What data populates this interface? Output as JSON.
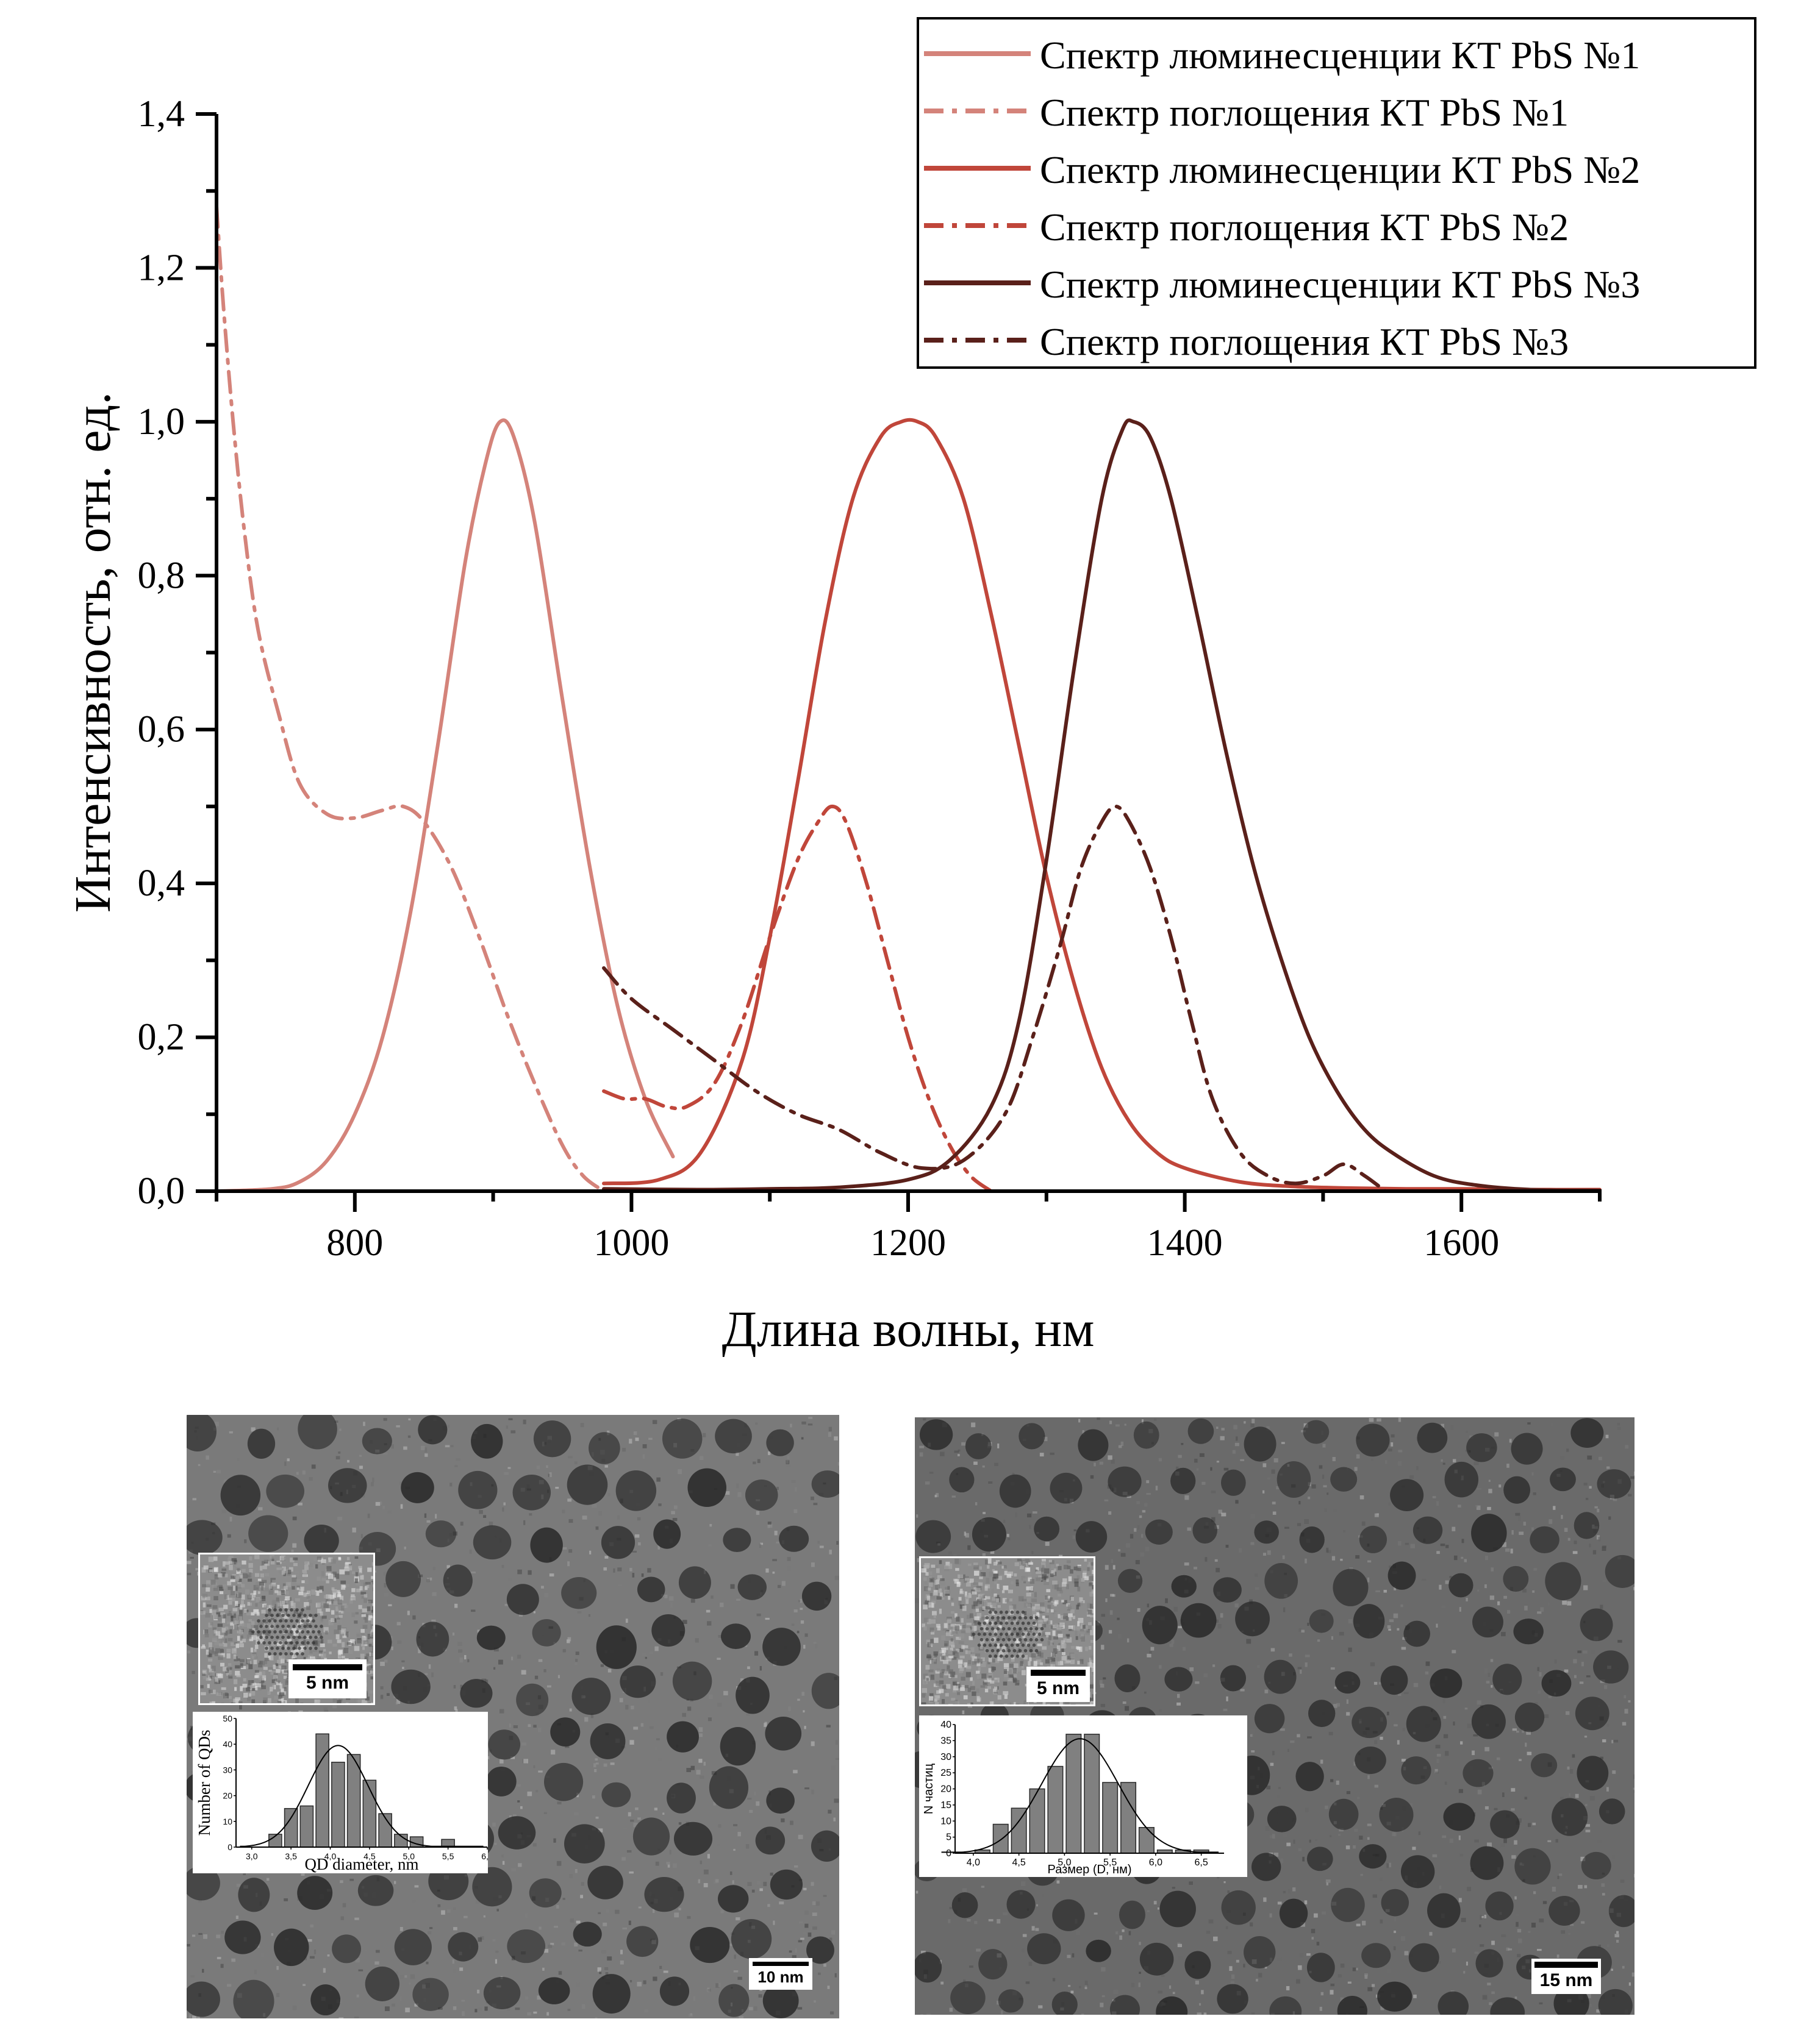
{
  "chart_data": [
    {
      "type": "line",
      "xlabel": "Длина волны, нм",
      "ylabel": "Интенсивность, отн. ед.",
      "xlim": [
        700,
        1700
      ],
      "ylim": [
        0,
        1.4
      ],
      "xticks": [
        800,
        1000,
        1200,
        1400,
        1600
      ],
      "xtick_labels": [
        "800",
        "1000",
        "1200",
        "1400",
        "1600"
      ],
      "yticks": [
        0,
        0.2,
        0.4,
        0.6,
        0.8,
        1.0,
        1.2,
        1.4
      ],
      "ytick_labels": [
        "0,0",
        "0,2",
        "0,4",
        "0,6",
        "0,8",
        "1,0",
        "1,2",
        "1,4"
      ],
      "grid": false,
      "legend_position": "top-right",
      "series": [
        {
          "name": "Спектр люминесценции КТ PbS №1",
          "style": "solid",
          "color": "#d4837a",
          "x": [
            700,
            740,
            760,
            780,
            800,
            820,
            840,
            860,
            880,
            895,
            905,
            915,
            930,
            950,
            970,
            990,
            1010,
            1030
          ],
          "y": [
            0.0,
            0.003,
            0.012,
            0.04,
            0.1,
            0.2,
            0.36,
            0.58,
            0.82,
            0.95,
            1.0,
            0.98,
            0.87,
            0.64,
            0.42,
            0.24,
            0.12,
            0.045
          ]
        },
        {
          "name": "Спектр поглощения КТ PbS №1",
          "style": "dashdotdot",
          "color": "#d4837a",
          "x": [
            700,
            705,
            712,
            720,
            730,
            745,
            760,
            780,
            800,
            820,
            835,
            850,
            870,
            890,
            910,
            930,
            950,
            965,
            980
          ],
          "y": [
            1.28,
            1.15,
            1.0,
            0.86,
            0.73,
            0.62,
            0.53,
            0.49,
            0.485,
            0.495,
            0.5,
            0.48,
            0.42,
            0.33,
            0.23,
            0.14,
            0.06,
            0.02,
            0.0
          ]
        },
        {
          "name": "Спектр люминесценции КТ PbS №2",
          "style": "solid",
          "color": "#c0463a",
          "x": [
            980,
            1020,
            1050,
            1080,
            1100,
            1120,
            1140,
            1160,
            1180,
            1195,
            1207,
            1220,
            1240,
            1260,
            1280,
            1300,
            1320,
            1340,
            1360,
            1380,
            1400,
            1440,
            1480,
            1520,
            1560,
            1600,
            1650,
            1700
          ],
          "y": [
            0.01,
            0.015,
            0.05,
            0.17,
            0.33,
            0.53,
            0.74,
            0.9,
            0.98,
            1.0,
            1.0,
            0.98,
            0.9,
            0.75,
            0.58,
            0.41,
            0.27,
            0.16,
            0.09,
            0.05,
            0.03,
            0.012,
            0.006,
            0.004,
            0.003,
            0.003,
            0.002,
            0.002
          ]
        },
        {
          "name": "Спектр поглощения КТ PbS №2",
          "style": "dashdotdot",
          "color": "#c0463a",
          "x": [
            980,
            995,
            1010,
            1025,
            1040,
            1060,
            1080,
            1100,
            1120,
            1135,
            1145,
            1155,
            1170,
            1185,
            1200,
            1215,
            1230,
            1245,
            1260
          ],
          "y": [
            0.13,
            0.12,
            0.12,
            0.11,
            0.11,
            0.14,
            0.22,
            0.33,
            0.43,
            0.48,
            0.5,
            0.48,
            0.4,
            0.3,
            0.2,
            0.12,
            0.06,
            0.02,
            0.0
          ]
        },
        {
          "name": "Спектр люминесценции КТ PbS №3",
          "style": "solid",
          "color": "#5a201a",
          "x": [
            980,
            1050,
            1100,
            1150,
            1200,
            1230,
            1260,
            1280,
            1300,
            1320,
            1340,
            1355,
            1363,
            1375,
            1390,
            1410,
            1430,
            1450,
            1470,
            1490,
            1510,
            1530,
            1550,
            1580,
            1610,
            1650,
            1700
          ],
          "y": [
            0.003,
            0.002,
            0.003,
            0.005,
            0.015,
            0.04,
            0.11,
            0.22,
            0.43,
            0.68,
            0.9,
            0.99,
            1.0,
            0.98,
            0.9,
            0.74,
            0.57,
            0.42,
            0.3,
            0.2,
            0.13,
            0.08,
            0.05,
            0.02,
            0.008,
            0.002,
            0.001
          ]
        },
        {
          "name": "Спектр поглощения КТ PbS №3",
          "style": "dashdotdot",
          "color": "#5a201a",
          "x": [
            980,
            1000,
            1030,
            1060,
            1090,
            1120,
            1150,
            1180,
            1210,
            1240,
            1270,
            1290,
            1310,
            1325,
            1340,
            1350,
            1360,
            1375,
            1390,
            1405,
            1420,
            1440,
            1460,
            1480,
            1500,
            1515,
            1530,
            1545
          ],
          "y": [
            0.29,
            0.25,
            0.21,
            0.17,
            0.13,
            0.1,
            0.08,
            0.05,
            0.03,
            0.04,
            0.1,
            0.2,
            0.32,
            0.42,
            0.48,
            0.5,
            0.48,
            0.42,
            0.33,
            0.22,
            0.12,
            0.05,
            0.02,
            0.01,
            0.02,
            0.035,
            0.02,
            0.0
          ]
        }
      ]
    },
    {
      "type": "bar",
      "title": "",
      "xlabel": "QD diameter, nm",
      "ylabel": "Number of QDs",
      "xlim": [
        2.8,
        6.0
      ],
      "ylim": [
        0,
        50
      ],
      "xticks": [
        3.0,
        3.5,
        4.0,
        4.5,
        5.0,
        5.5,
        6.0
      ],
      "xtick_labels": [
        "3,0",
        "3,5",
        "4,0",
        "4,5",
        "5,0",
        "5,5",
        "6,0"
      ],
      "yticks": [
        0,
        10,
        20,
        30,
        40,
        50
      ],
      "ytick_labels": [
        "0",
        "10",
        "20",
        "30",
        "40",
        "50"
      ],
      "bin_centers": [
        3.3,
        3.5,
        3.7,
        3.9,
        4.1,
        4.3,
        4.5,
        4.7,
        4.9,
        5.1,
        5.5
      ],
      "values": [
        5,
        15,
        16,
        44,
        33,
        36,
        26,
        13,
        5,
        4,
        3
      ],
      "fit": {
        "type": "gaussian",
        "center": 4.1,
        "amplitude": 39.5,
        "sigma": 0.38
      }
    },
    {
      "type": "bar",
      "title": "",
      "xlabel": "Размер (D, нм)",
      "ylabel": "N частиц",
      "xlim": [
        3.8,
        6.75
      ],
      "ylim": [
        0,
        40
      ],
      "xticks": [
        4.0,
        4.5,
        5.0,
        5.5,
        6.0,
        6.5
      ],
      "xtick_labels": [
        "4,0",
        "4,5",
        "5,0",
        "5,5",
        "6,0",
        "6,5"
      ],
      "yticks": [
        0,
        5,
        10,
        15,
        20,
        25,
        30,
        35,
        40
      ],
      "ytick_labels": [
        "0",
        "5",
        "10",
        "15",
        "20",
        "25",
        "30",
        "35",
        "40"
      ],
      "bin_centers": [
        4.1,
        4.3,
        4.5,
        4.7,
        4.9,
        5.1,
        5.3,
        5.5,
        5.7,
        5.9,
        6.1,
        6.3,
        6.5
      ],
      "values": [
        1,
        9,
        14,
        20,
        27,
        37,
        37,
        22,
        22,
        8,
        1,
        1,
        1
      ],
      "fit": {
        "type": "gaussian",
        "center": 5.17,
        "amplitude": 35.6,
        "sigma": 0.42
      }
    }
  ],
  "tem_images": {
    "left": {
      "scale_bar": "10 nm",
      "inset_scale_bar": "5 nm"
    },
    "right": {
      "scale_bar": "15 nm",
      "inset_scale_bar": "5 nm"
    }
  }
}
